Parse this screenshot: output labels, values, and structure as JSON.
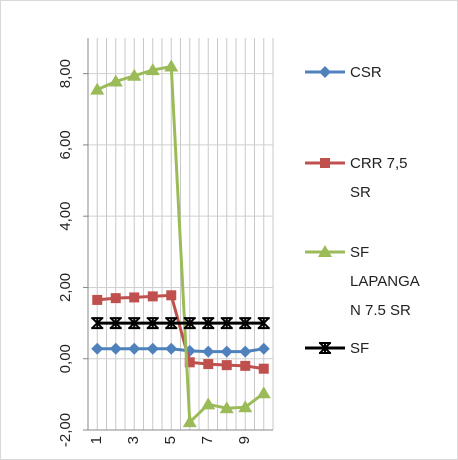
{
  "chart_data": {
    "type": "line",
    "categories": [
      "1",
      null,
      "3",
      null,
      "5",
      null,
      "7",
      null,
      "9",
      null
    ],
    "series": [
      {
        "name": "CSR",
        "color": "#4f81bd",
        "marker": "diamond",
        "values": [
          0.28,
          0.28,
          0.28,
          0.28,
          0.28,
          0.22,
          0.2,
          0.2,
          0.2,
          0.28
        ]
      },
      {
        "name": "CRR 7,5 SR",
        "color": "#c0504d",
        "marker": "square",
        "values": [
          1.65,
          1.7,
          1.72,
          1.75,
          1.78,
          -0.1,
          -0.15,
          -0.18,
          -0.2,
          -0.28
        ]
      },
      {
        "name": "SF LAPANGAN 7.5 SR",
        "color": "#9bbb59",
        "marker": "triangle",
        "values": [
          7.55,
          7.78,
          7.94,
          8.1,
          8.2,
          -1.78,
          -1.28,
          -1.39,
          -1.36,
          -0.97
        ]
      },
      {
        "name": "SF",
        "color": "#000000",
        "marker": "star",
        "values": [
          1,
          1,
          1,
          1,
          1,
          1,
          1,
          1,
          1,
          1
        ]
      }
    ],
    "ylim": [
      -2,
      9
    ],
    "yticks": [
      {
        "value": -2,
        "label": "-2,00"
      },
      {
        "value": 0,
        "label": "0,00"
      },
      {
        "value": 2,
        "label": "2,00"
      },
      {
        "value": 4,
        "label": "4,00"
      },
      {
        "value": 6,
        "label": "6,00"
      },
      {
        "value": 8,
        "label": "8,00"
      }
    ],
    "grid": true,
    "legend": "right"
  }
}
